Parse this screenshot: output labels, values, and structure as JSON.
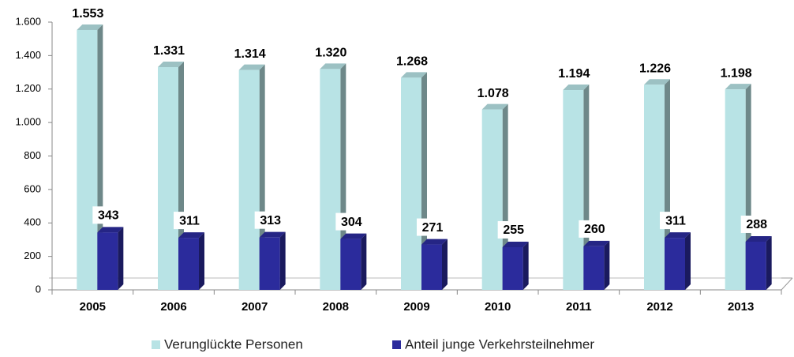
{
  "chart_data": {
    "type": "bar",
    "categories": [
      "2005",
      "2006",
      "2007",
      "2008",
      "2009",
      "2010",
      "2011",
      "2012",
      "2013"
    ],
    "series": [
      {
        "name": "Verunglückte Personen",
        "color": "#b8e3e5",
        "values": [
          1553,
          1331,
          1314,
          1320,
          1268,
          1078,
          1194,
          1226,
          1198
        ],
        "value_labels": [
          "1.553",
          "1.331",
          "1.314",
          "1.320",
          "1.268",
          "1.078",
          "1.194",
          "1.226",
          "1.198"
        ]
      },
      {
        "name": "Anteil junge Verkehrsteilnehmer",
        "color": "#2b2b9c",
        "values": [
          343,
          311,
          313,
          304,
          271,
          255,
          260,
          311,
          288
        ]
      }
    ],
    "ylim": [
      0,
      1600
    ],
    "yticks": [
      0,
      200,
      400,
      600,
      800,
      {
        "value": 1000,
        "label": "1.000"
      },
      {
        "value": 1200,
        "label": "1.200"
      },
      {
        "value": 1400,
        "label": "1.400"
      },
      {
        "value": 1600,
        "label": "1.600"
      }
    ],
    "legend": "bottom"
  }
}
